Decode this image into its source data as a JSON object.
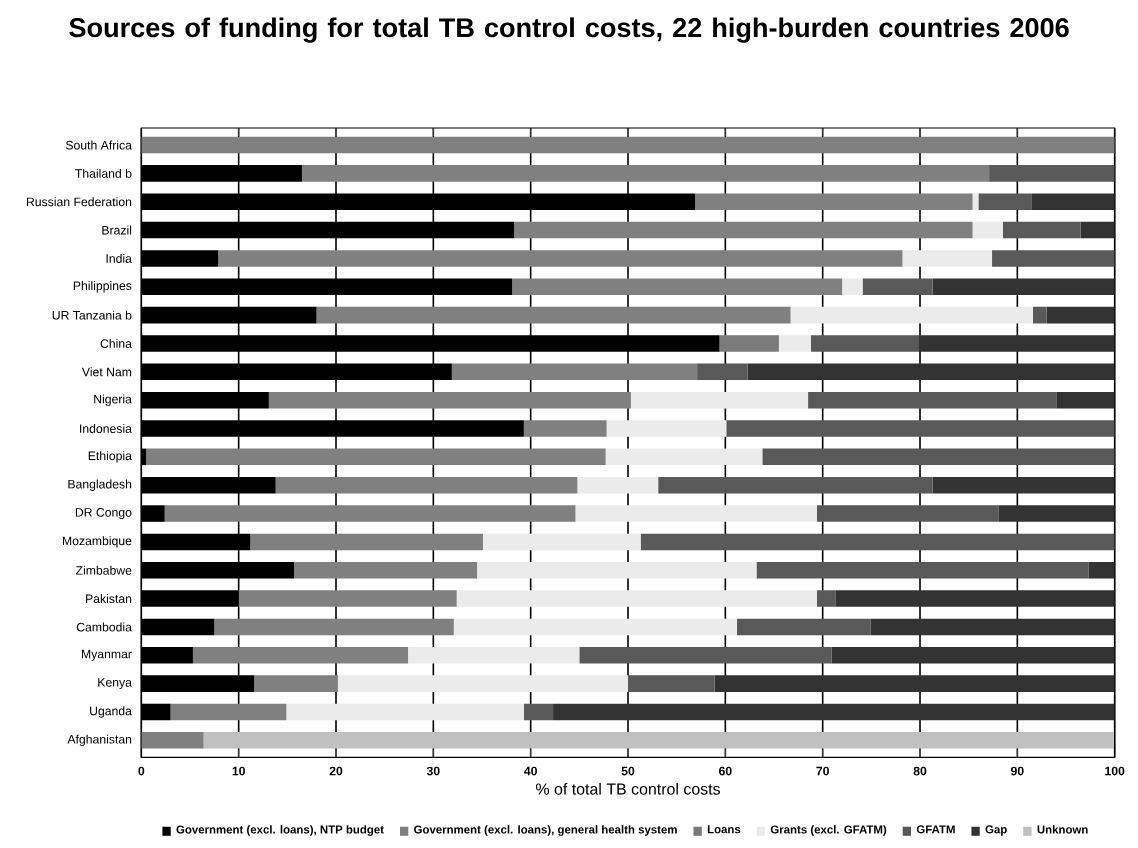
{
  "chart_data": {
    "type": "bar",
    "orientation": "horizontal",
    "stacked": true,
    "title": "Sources of funding for total TB control costs, 22 high-burden countries 2006",
    "xlabel": "% of total TB control costs",
    "categories": [
      "South Africa",
      "Thailand b",
      "Russian Federation",
      "Brazil",
      "India",
      "Philippines",
      "UR Tanzania b",
      "China",
      "Viet Nam",
      "Nigeria",
      "Indonesia",
      "Ethiopia",
      "Bangladesh",
      "DR Congo",
      "Mozambique",
      "Zimbabwe",
      "Pakistan",
      "Cambodia",
      "Myanmar",
      "Kenya",
      "Uganda",
      "Afghanistan"
    ],
    "series": [
      {
        "name": "Government (excl. loans), NTP budget",
        "color": "#000000",
        "values": [
          null,
          16.5,
          56.9,
          38.3,
          7.9,
          38.1,
          18.0,
          59.4,
          31.9,
          13.1,
          39.3,
          0.5,
          13.8,
          2.4,
          11.2,
          15.7,
          10.0,
          7.5,
          5.3,
          11.6,
          3.0,
          null
        ]
      },
      {
        "name": "Government (excl. loans), general health system",
        "color": "#808080",
        "values": [
          100,
          70.6,
          28.5,
          47.1,
          70.3,
          33.9,
          48.7,
          null,
          25.2,
          37.2,
          8.5,
          47.2,
          31.0,
          42.2,
          23.9,
          18.8,
          22.4,
          24.6,
          22.1,
          8.6,
          11.9,
          6.4
        ]
      },
      {
        "name": "Loans",
        "color": "#7a7a7a",
        "values": [
          null,
          null,
          null,
          null,
          null,
          null,
          null,
          6.1,
          null,
          null,
          null,
          null,
          null,
          null,
          null,
          null,
          null,
          null,
          null,
          null,
          null,
          null
        ]
      },
      {
        "name": "Grants (excl. GFATM)",
        "color": "#ebebeb",
        "values": [
          null,
          null,
          0.6,
          3.1,
          9.2,
          2.1,
          24.9,
          3.3,
          null,
          18.2,
          12.3,
          16.1,
          8.3,
          24.8,
          16.2,
          28.7,
          37.0,
          29.1,
          17.6,
          29.8,
          24.4,
          null
        ]
      },
      {
        "name": "GFATM",
        "color": "#595959",
        "values": [
          null,
          12.9,
          5.5,
          8.0,
          12.6,
          7.2,
          1.4,
          11.1,
          5.2,
          25.5,
          39.9,
          36.2,
          28.2,
          18.7,
          48.7,
          34.1,
          1.9,
          13.7,
          25.9,
          8.9,
          3.0,
          null
        ]
      },
      {
        "name": "Gap",
        "color": "#333333",
        "values": [
          null,
          null,
          8.5,
          3.5,
          null,
          18.7,
          7.0,
          20.1,
          37.7,
          6.0,
          null,
          null,
          18.7,
          11.9,
          null,
          2.7,
          28.7,
          25.1,
          29.1,
          41.1,
          57.7,
          null
        ]
      },
      {
        "name": "Unknown",
        "color": "#c0c0c0",
        "values": [
          null,
          null,
          null,
          null,
          null,
          null,
          null,
          null,
          null,
          null,
          null,
          null,
          null,
          null,
          null,
          null,
          null,
          null,
          null,
          null,
          null,
          93.5
        ]
      }
    ],
    "xlim": [
      0,
      100
    ],
    "xticks": [
      0,
      10,
      20,
      30,
      40,
      50,
      60,
      70,
      80,
      90,
      100
    ],
    "grid": "x",
    "legend": "bottom"
  }
}
